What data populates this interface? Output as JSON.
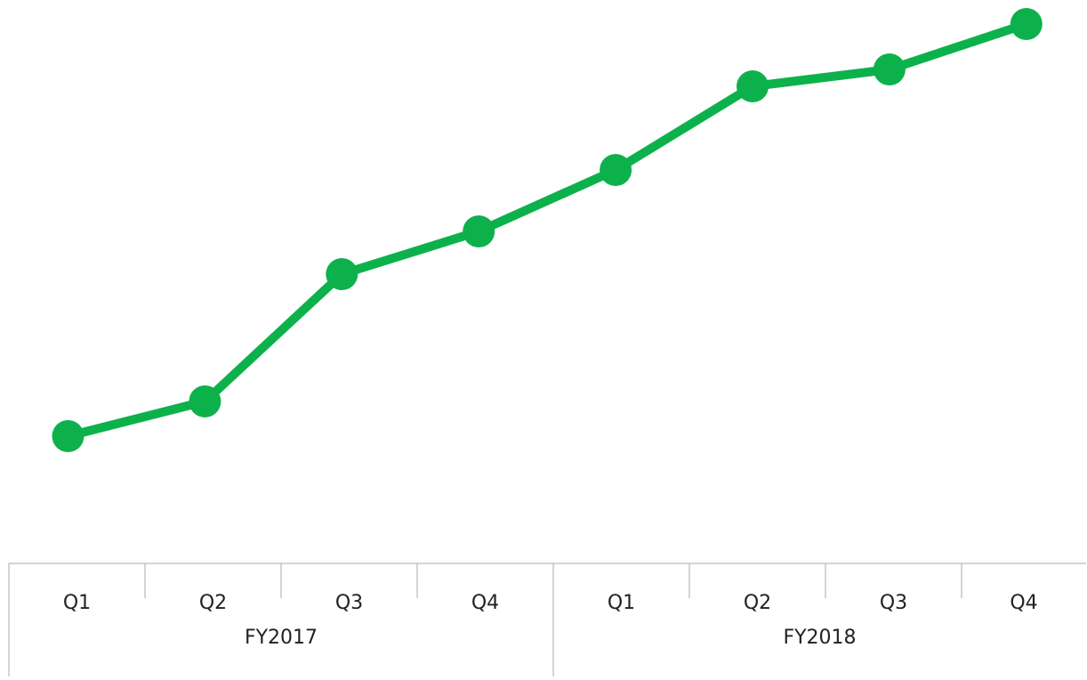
{
  "chart_data": {
    "type": "line",
    "groups": [
      {
        "name": "FY2017",
        "categories": [
          "Q1",
          "Q2",
          "Q3",
          "Q4"
        ]
      },
      {
        "name": "FY2018",
        "categories": [
          "Q1",
          "Q2",
          "Q3",
          "Q4"
        ]
      }
    ],
    "series": [
      {
        "color": "#0db14b",
        "values": [
          143,
          182,
          325,
          373,
          442,
          536,
          555,
          606
        ]
      }
    ],
    "ylim": [
      0,
      633
    ]
  }
}
